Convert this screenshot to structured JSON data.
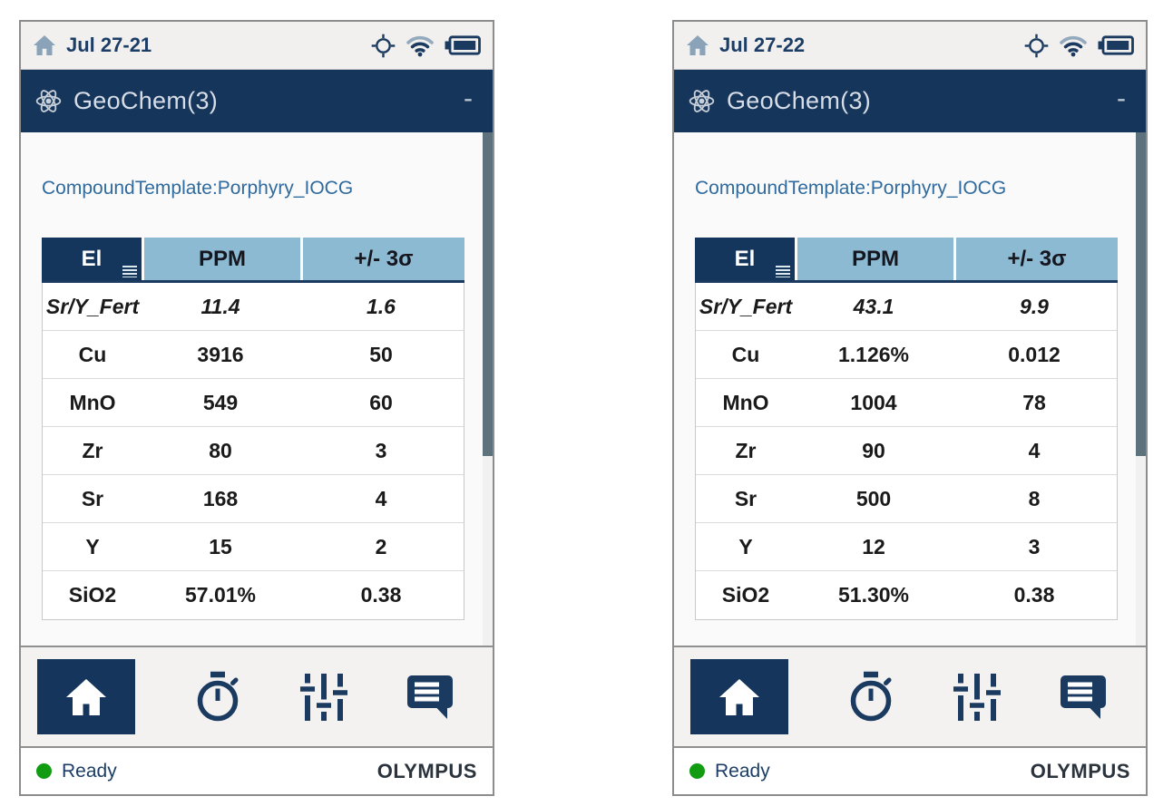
{
  "colors": {
    "title_navy": "#16355c",
    "header_blue": "#8cbad2",
    "link_blue": "#2f6b9e",
    "icon_navy": "#1b3a60",
    "ready_green": "#129c12",
    "brand_dark": "#2b333d"
  },
  "icons": {
    "top_left": "home-icon",
    "top_right": [
      "gps-crosshair-icon",
      "wifi-icon",
      "battery-icon"
    ],
    "title": "atom-icon",
    "column_menu": "list-menu-icon",
    "nav": [
      "home-icon",
      "stopwatch-icon",
      "sliders-icon",
      "chat-icon"
    ]
  },
  "devices": [
    {
      "status_top": {
        "date": "Jul 27-21"
      },
      "title_bar": {
        "app": "GeoChem(3)",
        "minimize": "-"
      },
      "template_label": "CompoundTemplate:Porphyry_IOCG",
      "table": {
        "headers": {
          "el": "El",
          "ppm": "PPM",
          "sigma": "+/- 3σ"
        },
        "rows": [
          {
            "el": "Sr/Y_Fert",
            "ppm": "11.4",
            "sigma": "1.6",
            "italic": true
          },
          {
            "el": "Cu",
            "ppm": "3916",
            "sigma": "50"
          },
          {
            "el": "MnO",
            "ppm": "549",
            "sigma": "60"
          },
          {
            "el": "Zr",
            "ppm": "80",
            "sigma": "3"
          },
          {
            "el": "Sr",
            "ppm": "168",
            "sigma": "4"
          },
          {
            "el": "Y",
            "ppm": "15",
            "sigma": "2"
          },
          {
            "el": "SiO2",
            "ppm": "57.01%",
            "sigma": "0.38"
          }
        ]
      },
      "status_bottom": {
        "state": "Ready",
        "brand": "OLYMPUS"
      }
    },
    {
      "status_top": {
        "date": "Jul 27-22"
      },
      "title_bar": {
        "app": "GeoChem(3)",
        "minimize": "-"
      },
      "template_label": "CompoundTemplate:Porphyry_IOCG",
      "table": {
        "headers": {
          "el": "El",
          "ppm": "PPM",
          "sigma": "+/- 3σ"
        },
        "rows": [
          {
            "el": "Sr/Y_Fert",
            "ppm": "43.1",
            "sigma": "9.9",
            "italic": true
          },
          {
            "el": "Cu",
            "ppm": "1.126%",
            "sigma": "0.012"
          },
          {
            "el": "MnO",
            "ppm": "1004",
            "sigma": "78"
          },
          {
            "el": "Zr",
            "ppm": "90",
            "sigma": "4"
          },
          {
            "el": "Sr",
            "ppm": "500",
            "sigma": "8"
          },
          {
            "el": "Y",
            "ppm": "12",
            "sigma": "3"
          },
          {
            "el": "SiO2",
            "ppm": "51.30%",
            "sigma": "0.38"
          }
        ]
      },
      "status_bottom": {
        "state": "Ready",
        "brand": "OLYMPUS"
      }
    }
  ]
}
